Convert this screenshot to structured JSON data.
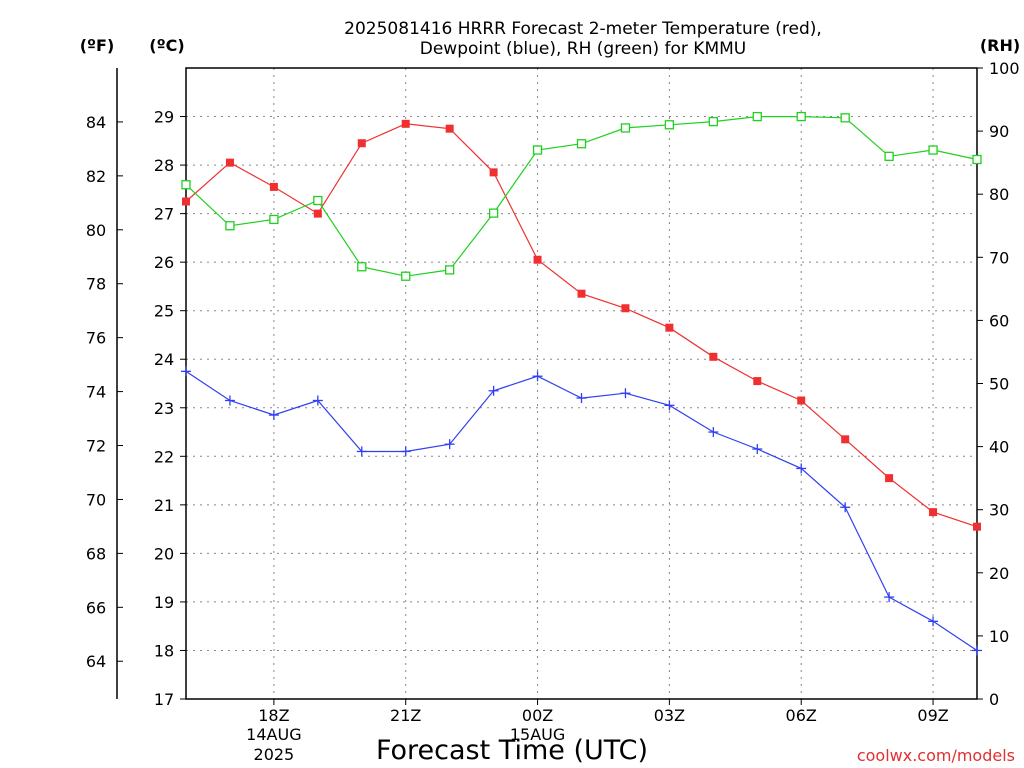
{
  "chart_data": {
    "type": "line",
    "title": "2025081416 HRRR Forecast 2-meter Temperature (red),",
    "subtitle": "Dewpoint (blue), RH (green) for KMMU",
    "xlabel": "Forecast Time (UTC)",
    "ylabel_f": "(ºF)",
    "ylabel_c": "(ºC)",
    "ylabel_rh": "(RH)",
    "watermark": "coolwx.com/models",
    "x_range_hours": [
      0,
      18
    ],
    "x_ticks": [
      {
        "hour": 2,
        "label": "18Z",
        "sub1": "14AUG",
        "sub2": "2025"
      },
      {
        "hour": 5,
        "label": "21Z",
        "sub1": "",
        "sub2": ""
      },
      {
        "hour": 8,
        "label": "00Z",
        "sub1": "15AUG",
        "sub2": ""
      },
      {
        "hour": 11,
        "label": "03Z",
        "sub1": "",
        "sub2": ""
      },
      {
        "hour": 14,
        "label": "06Z",
        "sub1": "",
        "sub2": ""
      },
      {
        "hour": 17,
        "label": "09Z",
        "sub1": "",
        "sub2": ""
      }
    ],
    "ylim_c": [
      17,
      30
    ],
    "ylim_rh": [
      0,
      100
    ],
    "yticks_c": [
      17,
      18,
      19,
      20,
      21,
      22,
      23,
      24,
      25,
      26,
      27,
      28,
      29
    ],
    "yticks_f": [
      64,
      66,
      68,
      70,
      72,
      74,
      76,
      78,
      80,
      82,
      84
    ],
    "yticks_rh": [
      0,
      10,
      20,
      30,
      40,
      50,
      60,
      70,
      80,
      90,
      100
    ],
    "grid": true,
    "series": [
      {
        "name": "Temperature",
        "color": "#f03030",
        "marker": "filled-square",
        "axis": "c",
        "values": [
          27.25,
          28.05,
          27.55,
          27.0,
          28.45,
          28.85,
          28.75,
          27.85,
          26.05,
          25.35,
          25.05,
          24.65,
          24.05,
          23.55,
          23.15,
          22.35,
          21.55,
          20.85,
          20.55
        ]
      },
      {
        "name": "Dewpoint",
        "color": "#3040f0",
        "marker": "plus",
        "axis": "c",
        "values": [
          23.75,
          23.15,
          22.85,
          23.15,
          22.1,
          22.1,
          22.25,
          23.35,
          23.65,
          23.2,
          23.3,
          23.05,
          22.5,
          22.15,
          21.75,
          20.95,
          19.1,
          18.6,
          18.0
        ]
      },
      {
        "name": "RH",
        "color": "#20d020",
        "marker": "open-square",
        "axis": "rh",
        "values": [
          81.5,
          75.0,
          76.0,
          79.0,
          68.5,
          67.0,
          68.0,
          77.0,
          87.0,
          88.0,
          90.5,
          91.0,
          91.5,
          92.3,
          92.3,
          92.1,
          86.0,
          87.0,
          85.5
        ]
      }
    ]
  }
}
